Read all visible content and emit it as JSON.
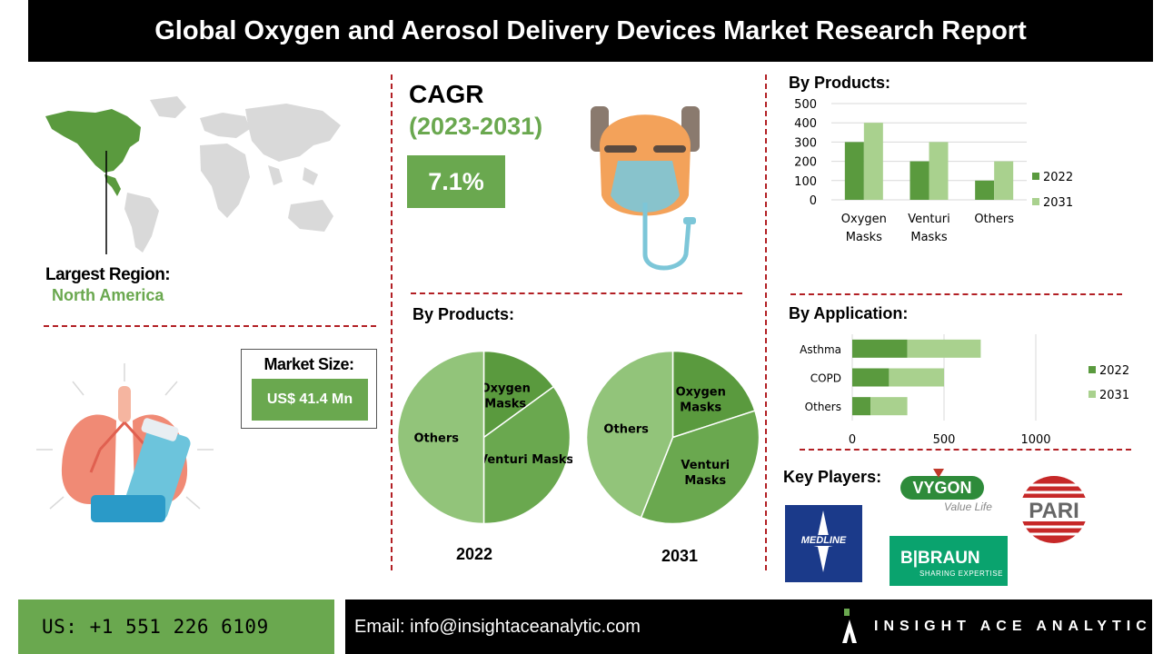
{
  "header": {
    "title": "Global Oxygen and Aerosol Delivery Devices Market Research Report"
  },
  "region": {
    "title": "Largest Region:",
    "name": "North America"
  },
  "market_size": {
    "title": "Market Size:",
    "value": "US$ 41.4 Mn"
  },
  "cagr": {
    "title": "CAGR",
    "period": "(2023-2031)",
    "value": "7.1%"
  },
  "pies": {
    "title": "By Products:",
    "year_a": "2022",
    "year_b": "2031"
  },
  "bar_products": {
    "title": "By Products:"
  },
  "bar_apps": {
    "title": "By Application:"
  },
  "key_players": {
    "title": "Key Players:",
    "medline": "MEDLINE",
    "bbraun_name": "B|BRAUN",
    "bbraun_tag": "SHARING EXPERTISE",
    "vygon_name": "VYGON",
    "vygon_tag": "Value Life",
    "pari": "PARI"
  },
  "footer": {
    "phone": "US: +1 551 226 6109",
    "email": "Email: info@insightaceanalytic.com",
    "brand": "INSIGHT ACE ANALYTIC"
  },
  "colors": {
    "dark_green": "#5a9a3e",
    "light_green": "#a9d18e",
    "accent": "#6aa84f",
    "divider": "#b21f24"
  },
  "chart_data": [
    {
      "type": "pie",
      "year": "2022",
      "categories": [
        "Oxygen Masks",
        "Venturi Masks",
        "Others"
      ],
      "labels": [
        "Oxygen\nMasks",
        "Venturi Masks",
        "Others"
      ],
      "values": [
        15,
        35,
        50
      ]
    },
    {
      "type": "pie",
      "year": "2031",
      "categories": [
        "Oxygen Masks",
        "Venturi Masks",
        "Others"
      ],
      "labels": [
        "Oxygen\nMasks",
        "Venturi\nMasks",
        "Others"
      ],
      "values": [
        20,
        36,
        44
      ]
    },
    {
      "type": "bar",
      "categories": [
        "Oxygen Masks",
        "Venturi Masks",
        "Others"
      ],
      "category_labels": [
        [
          "Oxygen",
          "Masks"
        ],
        [
          "Venturi",
          "Masks"
        ],
        [
          "Others"
        ]
      ],
      "series": [
        {
          "name": "2022",
          "values": [
            300,
            200,
            100
          ]
        },
        {
          "name": "2031",
          "values": [
            400,
            300,
            200
          ]
        }
      ],
      "ylim": [
        0,
        500
      ],
      "yticks": [
        "0",
        "100",
        "200",
        "300",
        "400",
        "500"
      ],
      "grid": true,
      "legend": "right"
    },
    {
      "type": "bar",
      "orientation": "horizontal",
      "stacked": true,
      "categories": [
        "Asthma",
        "COPD",
        "Others"
      ],
      "series": [
        {
          "name": "2022",
          "values": [
            300,
            200,
            100
          ]
        },
        {
          "name": "2031",
          "values": [
            400,
            300,
            200
          ]
        }
      ],
      "xlim": [
        0,
        1000
      ],
      "xticks": [
        "0",
        "500",
        "1000"
      ],
      "grid": true,
      "legend": "right"
    }
  ]
}
